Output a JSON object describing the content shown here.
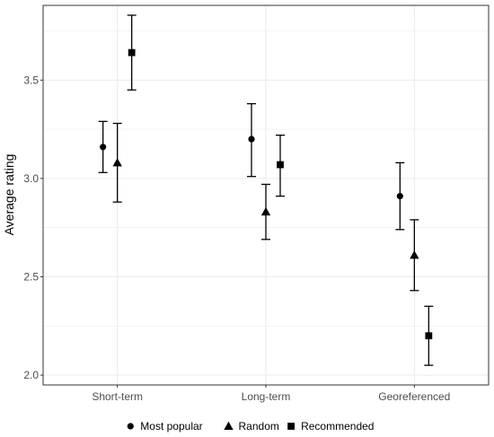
{
  "chart_data": {
    "type": "scatter",
    "title": "",
    "xlabel": "",
    "ylabel": "Average rating",
    "categories": [
      "Short-term",
      "Long-term",
      "Georeferenced"
    ],
    "ylim": [
      1.95,
      3.88
    ],
    "yticks": [
      2.0,
      2.5,
      3.0,
      3.5
    ],
    "ytick_labels": [
      "2.0",
      "2.5",
      "3.0",
      "3.5"
    ],
    "grid": true,
    "legend_position": "bottom",
    "error_bars": true,
    "series": [
      {
        "name": "Most popular",
        "marker": "circle",
        "values": [
          3.16,
          3.2,
          2.91
        ],
        "lower": [
          3.03,
          3.01,
          2.74
        ],
        "upper": [
          3.29,
          3.38,
          3.08
        ]
      },
      {
        "name": "Random",
        "marker": "triangle",
        "values": [
          3.08,
          2.83,
          2.61
        ],
        "lower": [
          2.88,
          2.69,
          2.43
        ],
        "upper": [
          3.28,
          2.97,
          2.79
        ]
      },
      {
        "name": "Recommended",
        "marker": "square",
        "values": [
          3.64,
          3.07,
          2.2
        ],
        "lower": [
          3.45,
          2.91,
          2.05
        ],
        "upper": [
          3.83,
          3.22,
          2.35
        ]
      }
    ],
    "colors": {
      "marker": "#000000",
      "grid": "#ebebeb",
      "panel_border": "#333333",
      "tick_text": "#4d4d4d"
    }
  }
}
